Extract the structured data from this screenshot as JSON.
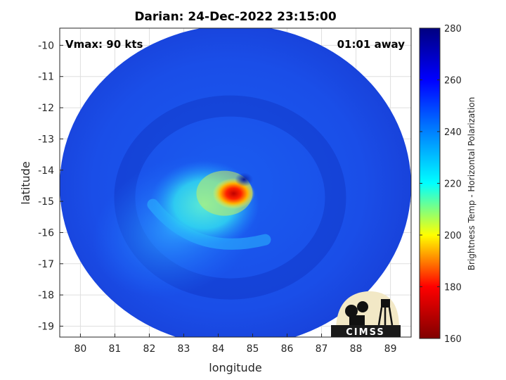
{
  "chart_data": {
    "type": "heatmap",
    "title": "Darian: 24-Dec-2022 23:15:00",
    "xlabel": "longitude",
    "ylabel": "latitude",
    "xlim": [
      79.4,
      89.6
    ],
    "ylim": [
      -19.35,
      -9.45
    ],
    "xticks": [
      80,
      81,
      82,
      83,
      84,
      85,
      86,
      87,
      88,
      89
    ],
    "yticks": [
      -10,
      -11,
      -12,
      -13,
      -14,
      -15,
      -16,
      -17,
      -18,
      -19
    ],
    "swath": {
      "center_lon": 84.5,
      "center_lat": -14.5,
      "radius_lon": 5.1,
      "radius_lat": 5.15
    },
    "storm_center": {
      "lon": 84.55,
      "lat": -14.65
    },
    "annotations": {
      "vmax": "Vmax: 90 kts",
      "time_offset": "01:01 away"
    },
    "colorbar": {
      "label": "Brightness Temp - Horizontal Polarization",
      "range": [
        160,
        280
      ],
      "ticks": [
        280,
        260,
        240,
        220,
        200,
        180,
        160
      ],
      "colors": [
        "#800000",
        "#ff0000",
        "#ffff00",
        "#00ffff",
        "#0080ff",
        "#0000ff",
        "#000080"
      ]
    },
    "background_value": 258,
    "features": [
      {
        "name": "eyewall warm core",
        "lon": 84.45,
        "lat": -14.75,
        "value": 185
      },
      {
        "name": "inner rainband",
        "lon": 83.6,
        "lat": -15.1,
        "value": 232
      },
      {
        "name": "outer rainband",
        "lon": 82.8,
        "lat": -15.8,
        "value": 245
      },
      {
        "name": "eye",
        "lon": 84.75,
        "lat": -14.3,
        "value": 268
      }
    ]
  },
  "logo": {
    "text": "CIMSS"
  }
}
